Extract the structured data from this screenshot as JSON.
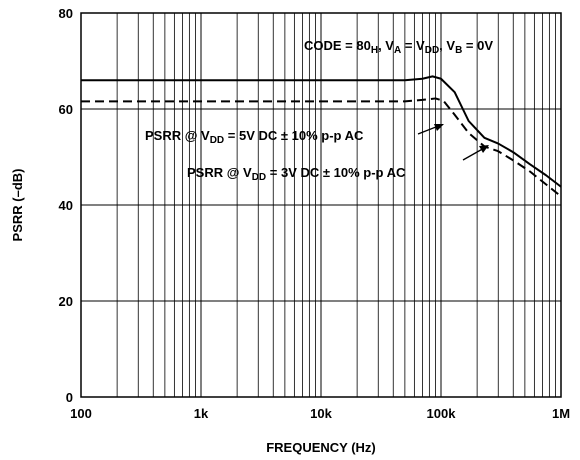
{
  "chart_data": {
    "type": "line",
    "xscale": "log",
    "xlim": [
      100,
      1000000
    ],
    "ylim": [
      0,
      80
    ],
    "grid": true,
    "xlabel": "FREQUENCY (Hz)",
    "ylabel": "PSRR (–dB)",
    "x_ticks": [
      {
        "value": 100,
        "label": "100"
      },
      {
        "value": 1000,
        "label": "1k"
      },
      {
        "value": 10000,
        "label": "10k"
      },
      {
        "value": 100000,
        "label": "100k"
      },
      {
        "value": 1000000,
        "label": "1M"
      }
    ],
    "y_ticks": [
      {
        "value": 0,
        "label": "0"
      },
      {
        "value": 20,
        "label": "20"
      },
      {
        "value": 40,
        "label": "40"
      },
      {
        "value": 60,
        "label": "60"
      },
      {
        "value": 80,
        "label": "80"
      }
    ],
    "condition": {
      "parts": [
        {
          "text": "CODE = 80"
        },
        {
          "text": "H",
          "sub": true
        },
        {
          "text": ", V"
        },
        {
          "text": "A",
          "sub": true
        },
        {
          "text": " = V"
        },
        {
          "text": "DD",
          "sub": true
        },
        {
          "text": ", V"
        },
        {
          "text": "B",
          "sub": true
        },
        {
          "text": " = 0V"
        }
      ]
    },
    "series": [
      {
        "name_parts": [
          {
            "text": "PSRR @ V"
          },
          {
            "text": "DD",
            "sub": true
          },
          {
            "text": " = 5V DC ± 10% p-p AC"
          }
        ],
        "style": "solid",
        "x": [
          100,
          1000,
          10000,
          50000,
          70000,
          85000,
          100000,
          130000,
          170000,
          230000,
          300000,
          400000,
          550000,
          750000,
          1000000
        ],
        "y": [
          66,
          66,
          66,
          66,
          66.3,
          66.8,
          66.3,
          63.5,
          57.5,
          54,
          52.8,
          51,
          48.5,
          46.2,
          43.8
        ]
      },
      {
        "name_parts": [
          {
            "text": "PSRR @ V"
          },
          {
            "text": "DD",
            "sub": true
          },
          {
            "text": " = 3V DC ± 10% p-p AC"
          }
        ],
        "style": "dashed",
        "x": [
          100,
          1000,
          10000,
          50000,
          70000,
          90000,
          105000,
          130000,
          170000,
          230000,
          300000,
          400000,
          550000,
          750000,
          1000000
        ],
        "y": [
          61.6,
          61.6,
          61.6,
          61.6,
          61.9,
          62.2,
          61.7,
          58.8,
          55,
          52.2,
          51.2,
          49.3,
          47,
          44.3,
          41.8
        ]
      }
    ]
  }
}
